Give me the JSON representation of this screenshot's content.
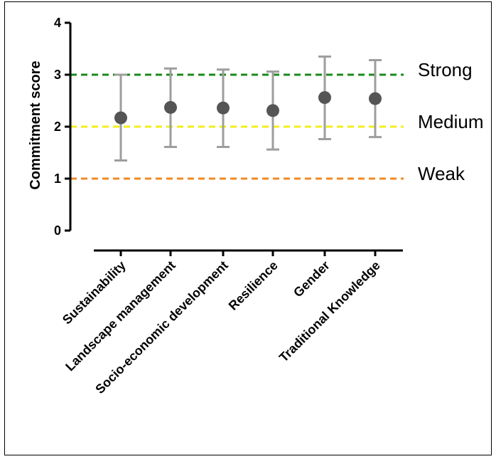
{
  "chart_data": {
    "type": "scatter",
    "ylabel": "Commitment score",
    "ylim": [
      0,
      4
    ],
    "yticks": [
      "0",
      "1",
      "2",
      "3",
      "4"
    ],
    "categories": [
      "Sustainability",
      "Landscape management",
      "Socio-economic development",
      "Resilience",
      "Gender",
      "Traditional Knowledge"
    ],
    "series": [
      {
        "values": [
          2.17,
          2.37,
          2.36,
          2.31,
          2.56,
          2.54
        ],
        "error_low": [
          1.35,
          1.61,
          1.61,
          1.56,
          1.76,
          1.8
        ],
        "error_high": [
          3.0,
          3.12,
          3.1,
          3.06,
          3.35,
          3.28
        ],
        "color": "#555555",
        "error_color": "#9e9e9e"
      }
    ],
    "reference_lines": [
      {
        "label": "Strong",
        "y": 3,
        "color": "#1a8a1a"
      },
      {
        "label": "Medium",
        "y": 2,
        "color": "#f2ef1a"
      },
      {
        "label": "Weak",
        "y": 1,
        "color": "#f08a24"
      }
    ],
    "grid": false
  }
}
